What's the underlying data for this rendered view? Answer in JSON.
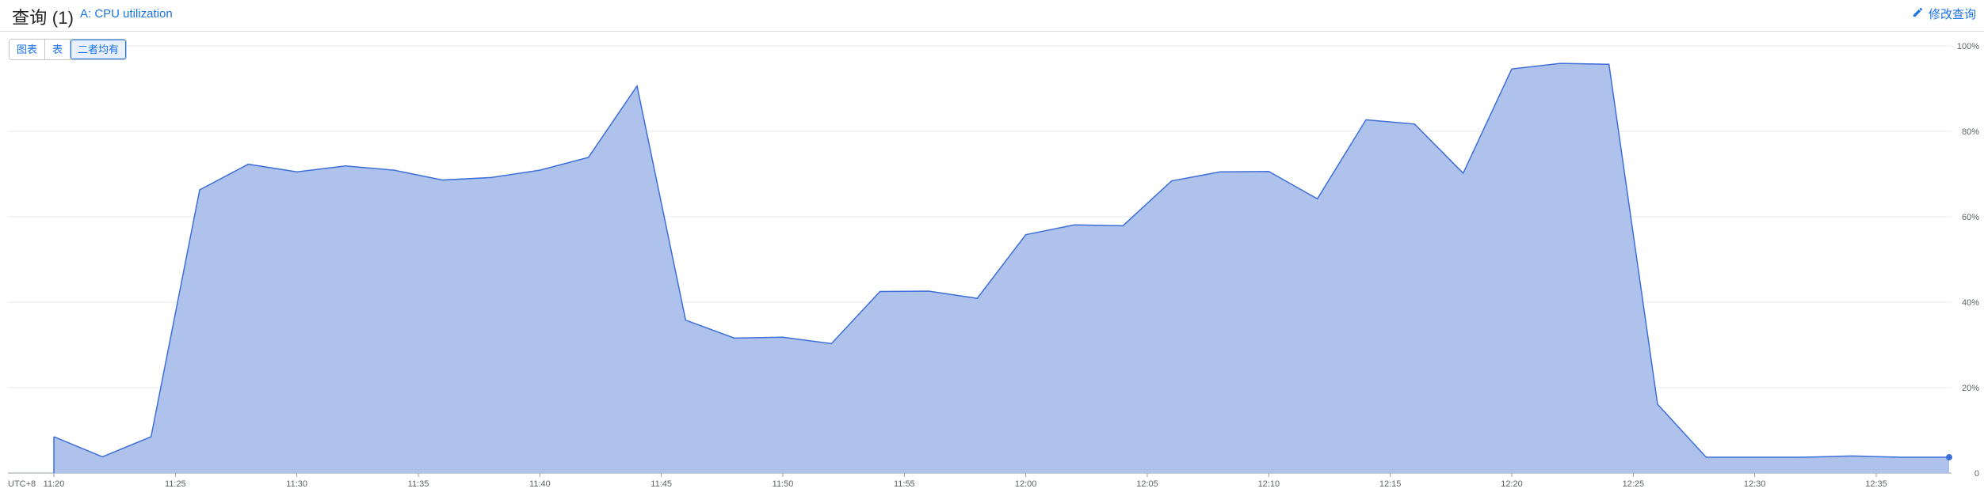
{
  "header": {
    "title": "查询 (1)",
    "query_link": "A: CPU utilization",
    "edit_label": "修改查询"
  },
  "view_toggle": {
    "options": [
      "图表",
      "表",
      "二者均有"
    ],
    "selected": "二者均有"
  },
  "colors": {
    "accent": "#1a73e8",
    "area_fill": "#aec2ec",
    "area_line": "#3d6fd8"
  },
  "chart_data": {
    "type": "area",
    "timezone_label": "UTC+8",
    "x_ticks": [
      "11:20",
      "11:25",
      "11:30",
      "11:35",
      "11:40",
      "11:45",
      "11:50",
      "11:55",
      "12:00",
      "12:05",
      "12:10",
      "12:15",
      "12:20",
      "12:25",
      "12:30",
      "12:35"
    ],
    "y_ticks": [
      "0",
      "20%",
      "40%",
      "60%",
      "80%",
      "100%"
    ],
    "ylim": [
      0,
      100
    ],
    "xlim": [
      "11:19",
      "12:38"
    ],
    "y_axis_position": "right",
    "grid": true,
    "series": [
      {
        "x": [
          "11:20",
          "11:22",
          "11:24",
          "11:26",
          "11:28",
          "11:30",
          "11:32",
          "11:34",
          "11:36",
          "11:38",
          "11:40",
          "11:42",
          "11:44",
          "11:46",
          "11:48",
          "11:50",
          "11:52",
          "11:54",
          "11:56",
          "11:58",
          "12:00",
          "12:02",
          "12:04",
          "12:06",
          "12:08",
          "12:10",
          "12:12",
          "12:14",
          "12:16",
          "12:18",
          "12:20",
          "12:22",
          "12:24",
          "12:26",
          "12:28",
          "12:30",
          "12:32",
          "12:34",
          "12:36",
          "12:38"
        ],
        "values": [
          8.5,
          3.8,
          8.5,
          66.3,
          72.3,
          70.5,
          71.9,
          70.9,
          68.6,
          69.2,
          70.9,
          73.9,
          90.6,
          35.8,
          31.6,
          31.8,
          30.3,
          42.5,
          42.6,
          40.9,
          55.8,
          58.1,
          57.9,
          68.4,
          70.5,
          70.6,
          64.2,
          82.7,
          81.7,
          70.2,
          94.6,
          95.9,
          95.7,
          16.1,
          3.7,
          3.7,
          3.7,
          4.0,
          3.7,
          3.7
        ]
      }
    ]
  }
}
